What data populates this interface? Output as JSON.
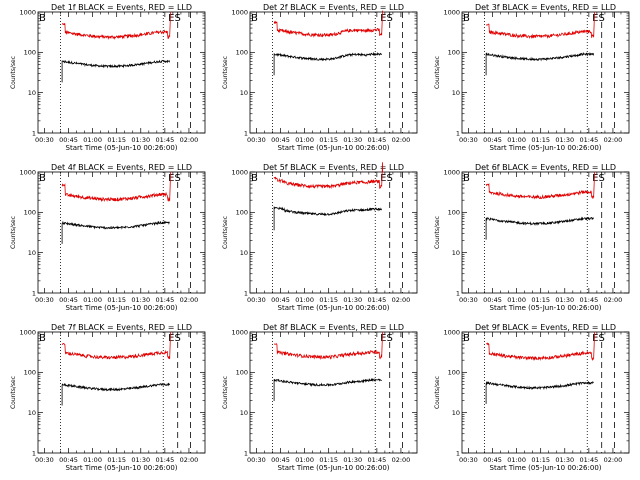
{
  "chart_data": {
    "type": "line",
    "yscale": "log",
    "ylim": [
      1,
      1000
    ],
    "yticks": [
      "1",
      "10",
      "100",
      "1000"
    ],
    "ylabel": "Counts/sec",
    "xlabel": "Start Time (05-Jun-10 00:26:00)",
    "xlim_minutes": [
      26,
      130
    ],
    "xticks": [
      {
        "label": "00:30",
        "min": 30
      },
      {
        "label": "00:45",
        "min": 45
      },
      {
        "label": "01:00",
        "min": 60
      },
      {
        "label": "01:15",
        "min": 75
      },
      {
        "label": "01:30",
        "min": 90
      },
      {
        "label": "01:45",
        "min": 105
      },
      {
        "label": "02:00",
        "min": 120
      }
    ],
    "colors": {
      "events": "#000000",
      "lld": "#e00000"
    },
    "markers": {
      "B": "B",
      "E": "E",
      "S": "S"
    },
    "lines": {
      "dotted": [
        40,
        104
      ],
      "dashed": [
        113,
        121
      ]
    },
    "panels": [
      {
        "title": "Det 1f BLACK = Events, RED = LLD",
        "data_start": 41,
        "data_end": 108,
        "events_level": 60,
        "lld_level": 320,
        "lld_start": 500,
        "bump": 0,
        "flat_front": 0
      },
      {
        "title": "Det 2f BLACK = Events, RED = LLD",
        "data_start": 41,
        "data_end": 108,
        "events_level": 90,
        "lld_level": 360,
        "lld_start": 550,
        "bump": 0.15,
        "flat_front": 0
      },
      {
        "title": "Det 3f BLACK = Events, RED = LLD",
        "data_start": 41,
        "data_end": 108,
        "events_level": 90,
        "lld_level": 330,
        "lld_start": 480,
        "bump": 0,
        "flat_front": 0
      },
      {
        "title": "Det 4f BLACK = Events, RED = LLD",
        "data_start": 41,
        "data_end": 108,
        "events_level": 55,
        "lld_level": 280,
        "lld_start": 480,
        "bump": 0,
        "flat_front": 0
      },
      {
        "title": "Det 5f BLACK = Events, RED = LLD",
        "data_start": 41,
        "data_end": 108,
        "events_level": 120,
        "lld_level": 580,
        "lld_start": 700,
        "bump": 0.1,
        "flat_front": 1
      },
      {
        "title": "Det 6f BLACK = Events, RED = LLD",
        "data_start": 41,
        "data_end": 108,
        "events_level": 70,
        "lld_level": 320,
        "lld_start": 480,
        "bump": 0,
        "flat_front": 0
      },
      {
        "title": "Det 7f BLACK = Events, RED = LLD",
        "data_start": 41,
        "data_end": 108,
        "events_level": 50,
        "lld_level": 310,
        "lld_start": 500,
        "bump": 0,
        "flat_front": 0
      },
      {
        "title": "Det 8f BLACK = Events, RED = LLD",
        "data_start": 41,
        "data_end": 108,
        "events_level": 65,
        "lld_level": 320,
        "lld_start": 520,
        "bump": 0.05,
        "flat_front": 0
      },
      {
        "title": "Det 9f BLACK = Events, RED = LLD",
        "data_start": 41,
        "data_end": 108,
        "events_level": 55,
        "lld_level": 300,
        "lld_start": 500,
        "bump": 0,
        "flat_front": 0
      }
    ]
  }
}
